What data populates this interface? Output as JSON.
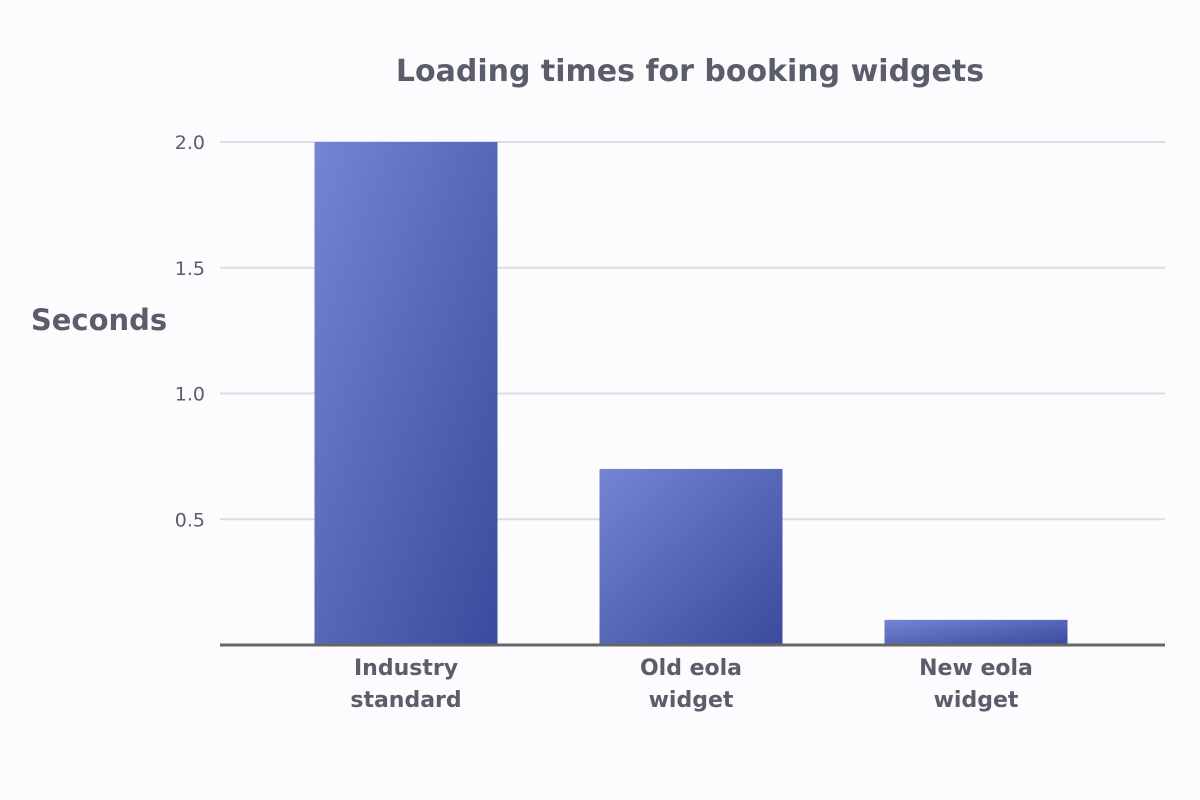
{
  "colors": {
    "background": "#fcfcfe",
    "bar_gradient_start": "#7585d4",
    "bar_gradient_end": "#3a4a9c",
    "grid": "#dcdce2",
    "axis": "#666666",
    "text": "#5b5d6b"
  },
  "chart_data": {
    "type": "bar",
    "title": "Loading times for booking widgets",
    "ylabel": "Seconds",
    "xlabel": "",
    "categories": [
      [
        "Industry",
        "standard"
      ],
      [
        "Old eola",
        "widget"
      ],
      [
        "New eola",
        "widget"
      ]
    ],
    "values": [
      2.0,
      0.7,
      0.1
    ],
    "ylim": [
      0,
      2.0
    ],
    "yticks": [
      {
        "value": 0.5,
        "label": "0.5"
      },
      {
        "value": 1.0,
        "label": "1.0"
      },
      {
        "value": 1.5,
        "label": "1.5"
      },
      {
        "value": 2.0,
        "label": "2.0"
      }
    ],
    "grid": true,
    "legend": "none"
  }
}
